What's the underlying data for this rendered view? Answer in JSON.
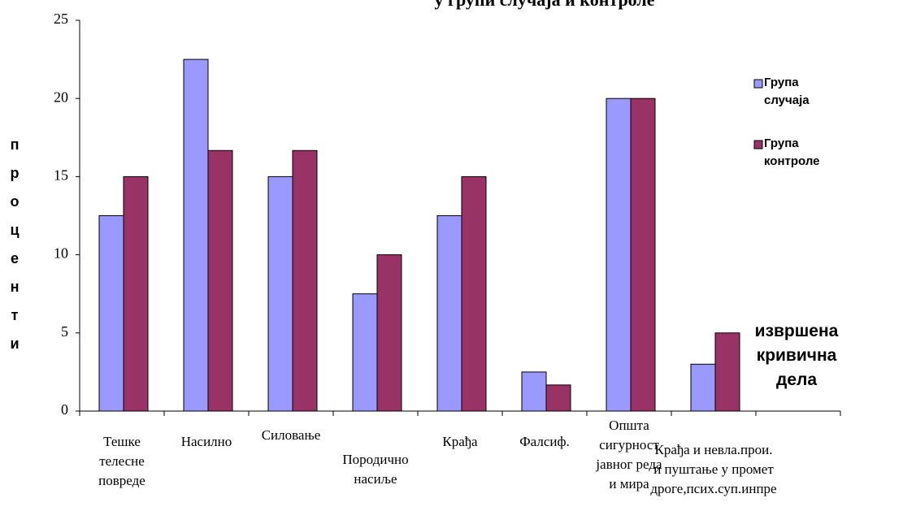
{
  "chart_data": {
    "type": "bar",
    "title": "у групи случаја и контроле",
    "y_label": "проценти",
    "annotation": [
      "извршена",
      "кривична",
      "дела"
    ],
    "categories": [
      [
        "Тешке",
        "телесне",
        "повреде"
      ],
      [
        "Насилно"
      ],
      [
        "Силовање"
      ],
      [
        "Породично",
        "насиље"
      ],
      [
        "Крађа"
      ],
      [
        "Фалсиф."
      ],
      [
        "Општа",
        "сигурност",
        "јавног реда",
        "и мира"
      ],
      [
        "Крађа и невла.прои.",
        "и пуштање у промет",
        "дроге,псих.суп.инпре"
      ],
      null
    ],
    "series": [
      {
        "name": "Група случаја",
        "color": "#9999ff",
        "values": [
          12.5,
          22.5,
          15,
          7.5,
          12.5,
          2.5,
          20,
          3,
          null
        ]
      },
      {
        "name": "Група контроле",
        "color": "#993366",
        "values": [
          15,
          16.67,
          16.67,
          10,
          15,
          1.67,
          20,
          5,
          null
        ]
      }
    ],
    "ylim": [
      0,
      25
    ],
    "yticks": [
      0,
      5,
      10,
      15,
      20,
      25
    ],
    "grid": false,
    "legend": "right"
  }
}
